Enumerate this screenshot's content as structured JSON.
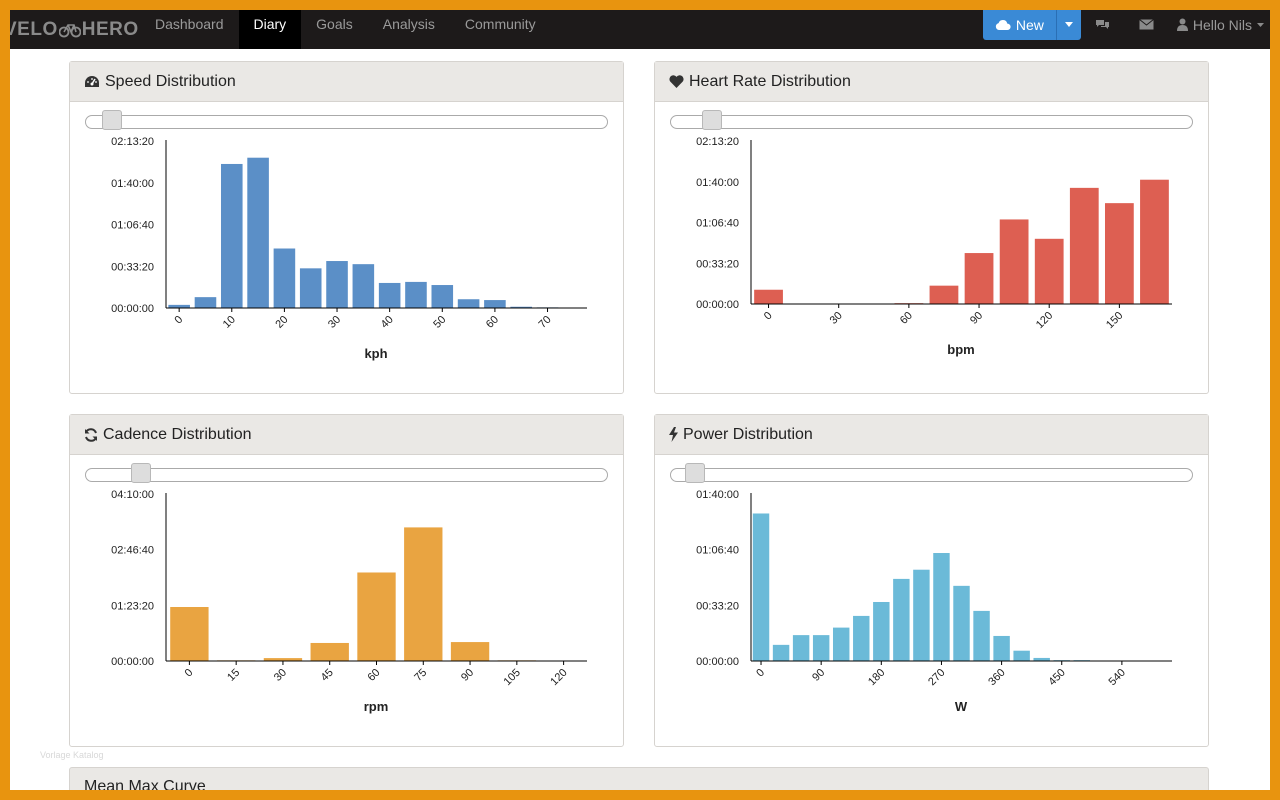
{
  "brand": {
    "text_left": "VELO",
    "text_right": "HERO"
  },
  "nav": {
    "items": [
      "Dashboard",
      "Diary",
      "Goals",
      "Analysis",
      "Community"
    ],
    "active": 1
  },
  "header": {
    "new_button": "New",
    "user_greeting": "Hello Nils"
  },
  "colors": {
    "speed": "#5b8fc7",
    "heart": "#dd5f52",
    "cadence": "#e9a441",
    "power": "#6bbad8"
  },
  "panels": {
    "speed": {
      "title": "Speed Distribution",
      "icon": "dashboard-icon"
    },
    "heart": {
      "title": "Heart Rate Distribution",
      "icon": "heart-icon"
    },
    "cadence": {
      "title": "Cadence Distribution",
      "icon": "refresh-icon"
    },
    "power": {
      "title": "Power Distribution",
      "icon": "bolt-icon"
    },
    "mmc": {
      "title": "Mean Max Curve"
    }
  },
  "watermark": "Vorlage Katalog",
  "chart_data": [
    {
      "id": "speed",
      "type": "bar",
      "xlabel": "kph",
      "ylim": [
        0,
        8000
      ],
      "yticks": [
        {
          "v": 0,
          "label": "00:00:00"
        },
        {
          "v": 2000,
          "label": "00:33:20"
        },
        {
          "v": 4000,
          "label": "01:06:40"
        },
        {
          "v": 6000,
          "label": "01:40:00"
        },
        {
          "v": 8000,
          "label": "02:13:20"
        }
      ],
      "xrange": [
        0,
        80
      ],
      "xticks": [
        {
          "v": 0,
          "label": "0"
        },
        {
          "v": 10,
          "label": "10"
        },
        {
          "v": 20,
          "label": "20"
        },
        {
          "v": 30,
          "label": "30"
        },
        {
          "v": 40,
          "label": "40"
        },
        {
          "v": 50,
          "label": "50"
        },
        {
          "v": 60,
          "label": "60"
        },
        {
          "v": 70,
          "label": "70"
        }
      ],
      "bin_width": 5,
      "bins": [
        0,
        5,
        10,
        15,
        20,
        25,
        30,
        35,
        40,
        45,
        50,
        55,
        60,
        65,
        70
      ],
      "values": [
        150,
        520,
        6900,
        7200,
        2850,
        1900,
        2250,
        2100,
        1200,
        1250,
        1100,
        420,
        380,
        60,
        30
      ]
    },
    {
      "id": "heart",
      "type": "bar",
      "xlabel": "bpm",
      "ylim": [
        0,
        8000
      ],
      "yticks": [
        {
          "v": 0,
          "label": "00:00:00"
        },
        {
          "v": 2000,
          "label": "00:33:20"
        },
        {
          "v": 4000,
          "label": "01:06:40"
        },
        {
          "v": 6000,
          "label": "01:40:00"
        },
        {
          "v": 8000,
          "label": "02:13:20"
        }
      ],
      "xrange": [
        0,
        180
      ],
      "xticks": [
        {
          "v": 0,
          "label": "0"
        },
        {
          "v": 30,
          "label": "30"
        },
        {
          "v": 60,
          "label": "60"
        },
        {
          "v": 90,
          "label": "90"
        },
        {
          "v": 120,
          "label": "120"
        },
        {
          "v": 150,
          "label": "150"
        }
      ],
      "bin_width": 15,
      "bins": [
        0,
        15,
        30,
        45,
        60,
        75,
        90,
        105,
        120,
        135,
        150,
        165
      ],
      "values": [
        700,
        0,
        0,
        0,
        40,
        900,
        2500,
        4150,
        3200,
        5700,
        4950,
        6100
      ]
    },
    {
      "id": "cadence",
      "type": "bar",
      "xlabel": "rpm",
      "ylim": [
        0,
        15000
      ],
      "yticks": [
        {
          "v": 0,
          "label": "00:00:00"
        },
        {
          "v": 5000,
          "label": "01:23:20"
        },
        {
          "v": 10000,
          "label": "02:46:40"
        },
        {
          "v": 15000,
          "label": "04:10:00"
        }
      ],
      "xrange": [
        0,
        135
      ],
      "xticks": [
        {
          "v": 0,
          "label": "0"
        },
        {
          "v": 15,
          "label": "15"
        },
        {
          "v": 30,
          "label": "30"
        },
        {
          "v": 45,
          "label": "45"
        },
        {
          "v": 60,
          "label": "60"
        },
        {
          "v": 75,
          "label": "75"
        },
        {
          "v": 90,
          "label": "90"
        },
        {
          "v": 105,
          "label": "105"
        },
        {
          "v": 120,
          "label": "120"
        }
      ],
      "bin_width": 15,
      "bins": [
        0,
        15,
        30,
        45,
        60,
        75,
        90,
        105,
        120
      ],
      "values": [
        4850,
        60,
        260,
        1620,
        7950,
        12000,
        1700,
        60,
        10
      ]
    },
    {
      "id": "power",
      "type": "bar",
      "xlabel": "W",
      "ylim": [
        0,
        6000
      ],
      "yticks": [
        {
          "v": 0,
          "label": "00:00:00"
        },
        {
          "v": 2000,
          "label": "00:33:20"
        },
        {
          "v": 4000,
          "label": "01:06:40"
        },
        {
          "v": 6000,
          "label": "01:40:00"
        }
      ],
      "xrange": [
        0,
        630
      ],
      "xticks": [
        {
          "v": 0,
          "label": "0"
        },
        {
          "v": 90,
          "label": "90"
        },
        {
          "v": 180,
          "label": "180"
        },
        {
          "v": 270,
          "label": "270"
        },
        {
          "v": 360,
          "label": "360"
        },
        {
          "v": 450,
          "label": "450"
        },
        {
          "v": 540,
          "label": "540"
        }
      ],
      "bin_width": 30,
      "bins": [
        0,
        30,
        60,
        90,
        120,
        150,
        180,
        210,
        240,
        270,
        300,
        330,
        360,
        390,
        420,
        450,
        480
      ],
      "values": [
        5300,
        580,
        930,
        930,
        1200,
        1620,
        2120,
        2950,
        3280,
        3880,
        2700,
        1800,
        900,
        370,
        110,
        30,
        30
      ]
    }
  ]
}
